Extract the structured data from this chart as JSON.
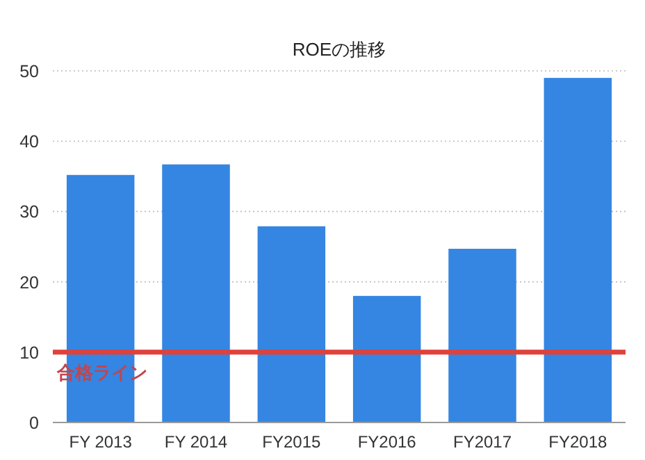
{
  "chart_data": {
    "type": "bar",
    "title": "ROEの推移",
    "categories": [
      "FY 2013",
      "FY 2014",
      "FY2015",
      "FY2016",
      "FY2017",
      "FY2018"
    ],
    "values": [
      35.2,
      36.7,
      27.9,
      18.0,
      24.7,
      49.0
    ],
    "color": "#3486e2",
    "ylim": [
      0,
      50
    ],
    "yticks": [
      0,
      10,
      20,
      30,
      40,
      50
    ],
    "grid": "y",
    "ref_lines": [
      {
        "axis": "y",
        "value": 10,
        "label": "合格ライン",
        "color": "#e0413a"
      }
    ]
  }
}
